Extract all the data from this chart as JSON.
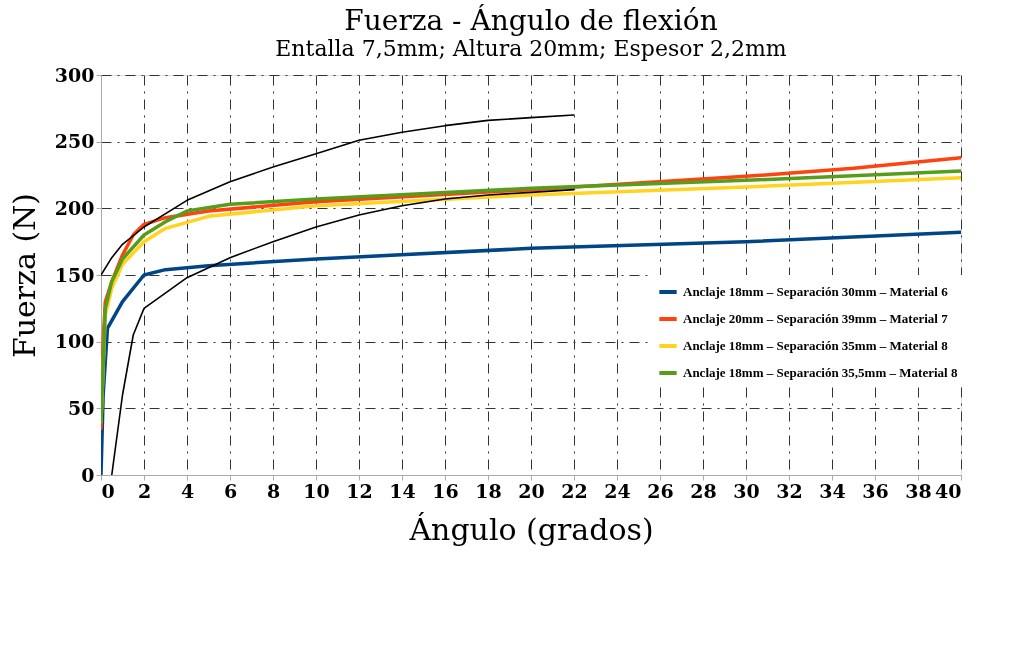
{
  "chart_data": {
    "type": "line",
    "title": "Fuerza - Ángulo de flexión",
    "subtitle": "Entalla 7,5mm; Altura 20mm; Espesor 2,2mm",
    "xlabel": "Ángulo (grados)",
    "ylabel": "Fuerza (N)",
    "xlim": [
      0,
      40
    ],
    "xticks": [
      0,
      2,
      4,
      6,
      8,
      10,
      12,
      14,
      16,
      18,
      20,
      22,
      24,
      26,
      28,
      30,
      32,
      34,
      36,
      38,
      40
    ],
    "ylim": [
      0,
      300
    ],
    "yticks": [
      0,
      50,
      100,
      150,
      200,
      250,
      300
    ],
    "grid": true,
    "legend": "right",
    "line_style": "solid",
    "marker": "none",
    "series": [
      {
        "name": "Anclaje 18mm – Separación 30mm – Material 6",
        "color": "#004586",
        "x": [
          0,
          0.1,
          0.3,
          1,
          2,
          3,
          5,
          10,
          20,
          30,
          40
        ],
        "values": [
          0,
          60,
          110,
          130,
          150,
          154,
          157,
          162,
          170,
          175,
          182
        ]
      },
      {
        "name": "Anclaje 20mm – Separación 39mm – Material 7",
        "color": "#ff420e",
        "x": [
          0,
          0.1,
          0.2,
          0.5,
          1,
          1.5,
          2,
          3,
          5,
          10,
          20,
          30,
          35,
          40
        ],
        "values": [
          35,
          100,
          130,
          145,
          165,
          180,
          188,
          193,
          198,
          205,
          214,
          224,
          230,
          238
        ]
      },
      {
        "name": "Anclaje 18mm – Separación 35mm – Material 8",
        "color": "#ffd320",
        "x": [
          0,
          0.2,
          0.5,
          1,
          2,
          3,
          5,
          10,
          20,
          30,
          40
        ],
        "values": [
          40,
          120,
          140,
          158,
          175,
          185,
          194,
          202,
          210,
          216,
          223
        ]
      },
      {
        "name": "Anclaje 18mm – Separación 35,5mm – Material 8",
        "color": "#579d1c",
        "x": [
          0,
          0.2,
          0.5,
          1,
          2,
          3,
          4,
          6,
          10,
          20,
          30,
          40
        ],
        "values": [
          40,
          125,
          145,
          162,
          180,
          190,
          198,
          203,
          207,
          215,
          221,
          228
        ]
      },
      {
        "color": "#000000",
        "x": [
          0,
          0.5,
          1,
          2,
          4,
          6,
          8,
          10,
          12,
          14,
          16,
          18,
          20,
          22
        ],
        "values": [
          150,
          163,
          173,
          186,
          206,
          220,
          231,
          241,
          251,
          257,
          262,
          266,
          268,
          270
        ]
      },
      {
        "color": "#000000",
        "x": [
          0.5,
          1,
          1.5,
          2,
          4,
          6,
          8,
          10,
          12,
          14,
          16,
          18,
          20,
          22
        ],
        "values": [
          0,
          60,
          105,
          125,
          148,
          163,
          175,
          186,
          195,
          202,
          207,
          210,
          212,
          214
        ]
      }
    ]
  }
}
